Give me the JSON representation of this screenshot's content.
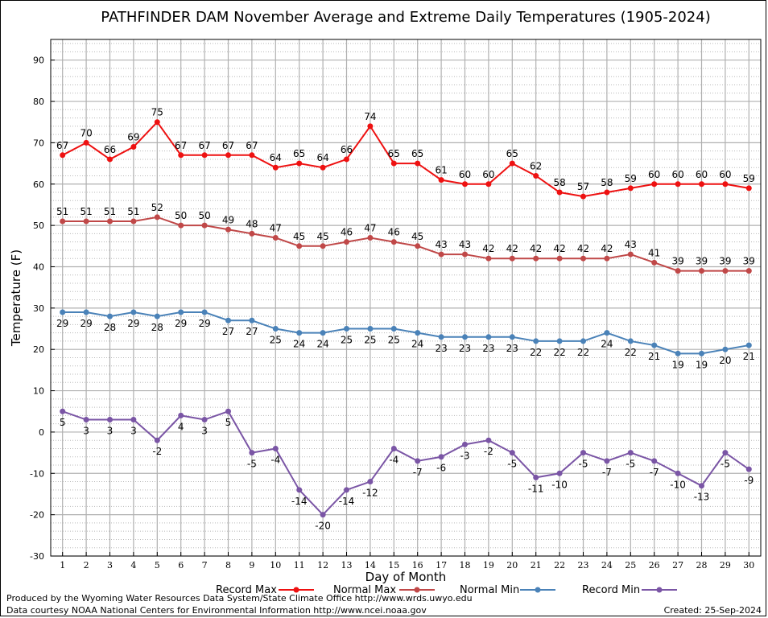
{
  "chart_data": {
    "type": "line",
    "title": "PATHFINDER DAM November Average and Extreme Daily Temperatures (1905-2024)",
    "xlabel": "Day of Month",
    "ylabel": "Temperature (F)",
    "ylim": [
      -30,
      95
    ],
    "yticks": [
      -30,
      -20,
      -10,
      0,
      10,
      20,
      30,
      40,
      50,
      60,
      70,
      80,
      90
    ],
    "x": [
      1,
      2,
      3,
      4,
      5,
      6,
      7,
      8,
      9,
      10,
      11,
      12,
      13,
      14,
      15,
      16,
      17,
      18,
      19,
      20,
      21,
      22,
      23,
      24,
      25,
      26,
      27,
      28,
      29,
      30
    ],
    "grid": true,
    "legend_position": "bottom",
    "series": [
      {
        "name": "Record Max",
        "color": "#ee1111",
        "label_pos": "above",
        "values": [
          67,
          70,
          66,
          69,
          75,
          67,
          67,
          67,
          67,
          64,
          65,
          64,
          66,
          74,
          65,
          65,
          61,
          60,
          60,
          65,
          62,
          58,
          57,
          58,
          59,
          60,
          60,
          60,
          60,
          59
        ]
      },
      {
        "name": "Normal Max",
        "color": "#c04848",
        "label_pos": "above",
        "values": [
          51,
          51,
          51,
          51,
          52,
          50,
          50,
          49,
          48,
          47,
          45,
          45,
          46,
          47,
          46,
          45,
          43,
          43,
          42,
          42,
          42,
          42,
          42,
          42,
          43,
          41,
          39,
          39,
          39,
          39
        ]
      },
      {
        "name": "Normal Min",
        "color": "#4a82b8",
        "label_pos": "below",
        "values": [
          29,
          29,
          28,
          29,
          28,
          29,
          29,
          27,
          27,
          25,
          24,
          24,
          25,
          25,
          25,
          24,
          23,
          23,
          23,
          23,
          22,
          22,
          22,
          24,
          22,
          21,
          19,
          19,
          20,
          21
        ]
      },
      {
        "name": "Record Min",
        "color": "#7a55a5",
        "label_pos": "below",
        "values": [
          5,
          3,
          3,
          3,
          -2,
          4,
          3,
          5,
          -5,
          -4,
          -14,
          -20,
          -14,
          -12,
          -4,
          -7,
          -6,
          -3,
          -2,
          -5,
          -11,
          -10,
          -5,
          -7,
          -5,
          -7,
          -10,
          -13,
          -5,
          -9
        ]
      }
    ]
  },
  "footer": {
    "produced_by": "Produced by the Wyoming Water Resources Data System/State Climate Office http://www.wrds.uwyo.edu",
    "courtesy": "Data courtesy NOAA National Centers for Environmental Information http://www.ncei.noaa.gov",
    "created": "Created: 25-Sep-2024"
  }
}
